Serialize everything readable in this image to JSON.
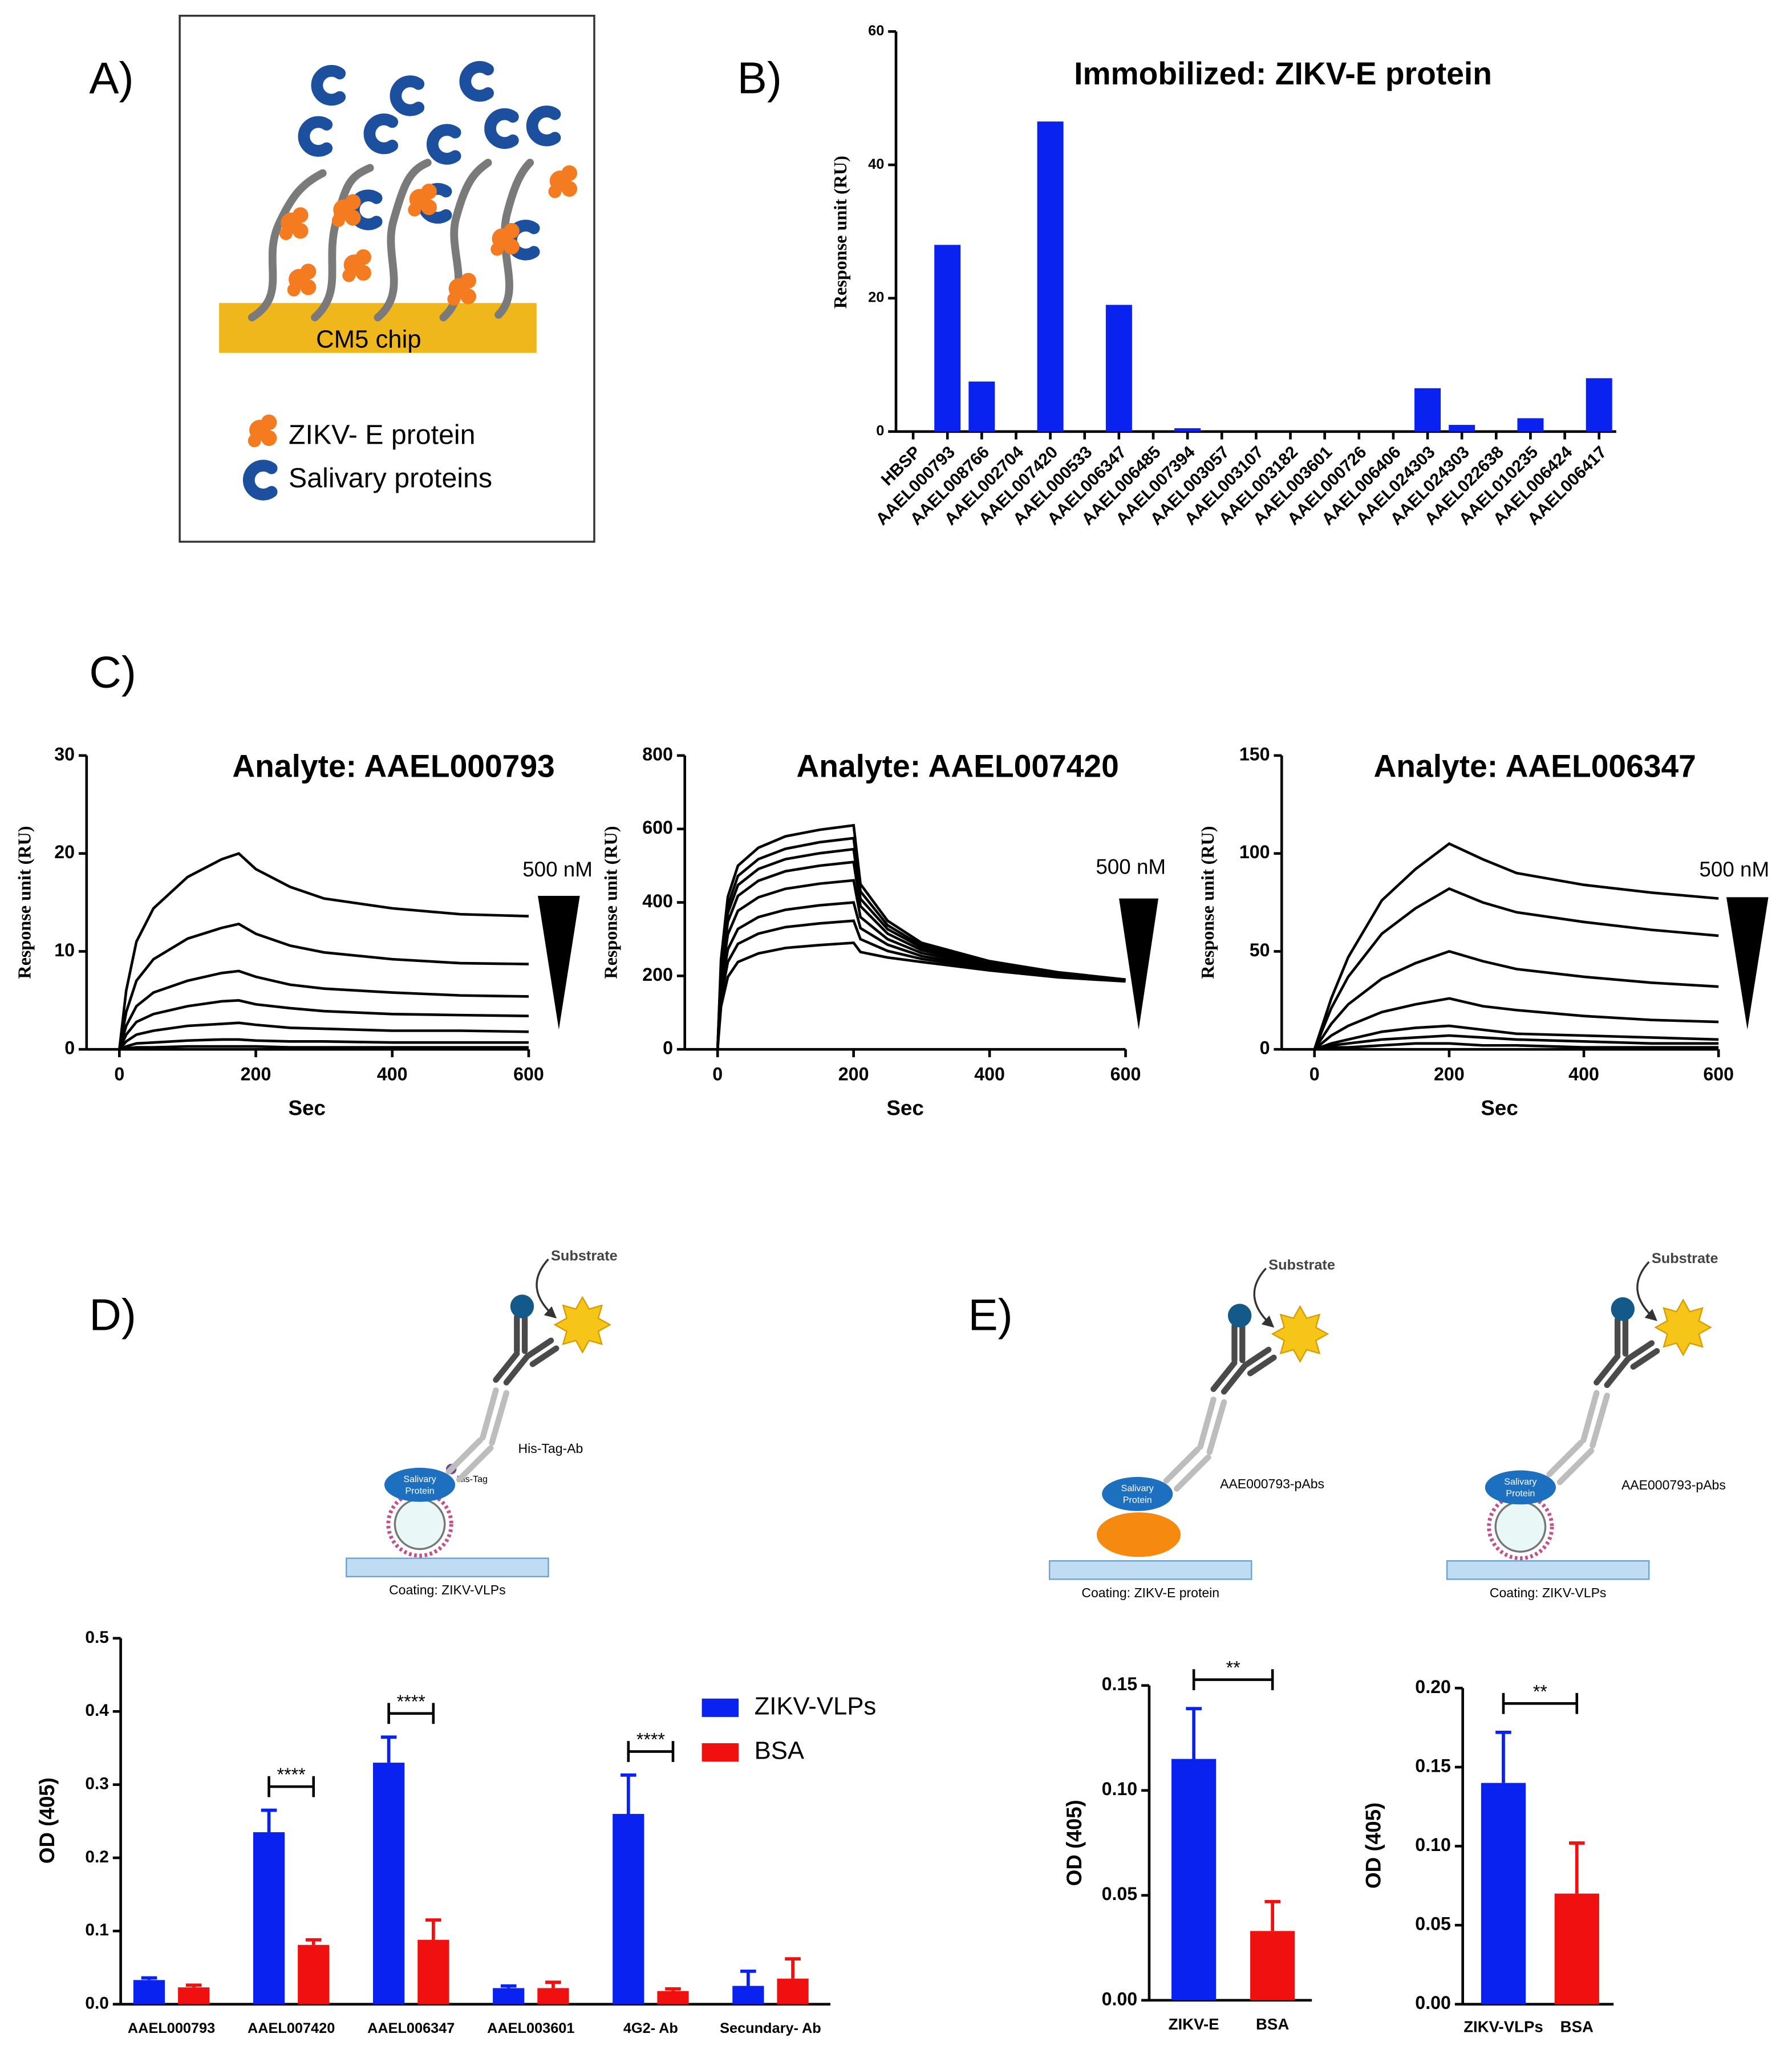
{
  "panel_labels": [
    "A)",
    "B)",
    "C)",
    "D)",
    "E)"
  ],
  "diagram_a": {
    "chip": "CM5 chip",
    "legend": [
      "ZIKV- E protein",
      "Salivary proteins"
    ]
  },
  "diagram_d": {
    "substrate": "Substrate",
    "antibody": "His-Tag-Ab",
    "protein": [
      "Salivary",
      "Protein"
    ],
    "tag": "His-Tag",
    "coating": "Coating: ZIKV-VLPs"
  },
  "diagram_e": [
    {
      "substrate": "Substrate",
      "antibody": "AAE000793-pAbs",
      "protein": [
        "Salivary",
        "Protein"
      ],
      "coating": "Coating: ZIKV-E protein"
    },
    {
      "substrate": "Substrate",
      "antibody": "AAE000793-pAbs",
      "protein": [
        "Salivary",
        "Protein"
      ],
      "coating": "Coating: ZIKV-VLPs"
    }
  ],
  "chart_data": [
    {
      "type": "bar",
      "title": "Immobilized: ZIKV-E protein",
      "y_label": "Response unit (RU)",
      "categories": [
        "HBSP",
        "AAEL000793",
        "AAEL008766",
        "AAEL002704",
        "AAEL007420",
        "AAEL000533",
        "AAEL006347",
        "AAEL006485",
        "AAEL007394",
        "AAEL003057",
        "AAEL003107",
        "AAEL003182",
        "AAEL003601",
        "AAEL000726",
        "AAEL006406",
        "AAEL024303",
        "AAEL024303",
        "AAEL022638",
        "AAEL010235",
        "AAEL006424",
        "AAEL006417"
      ],
      "values": [
        0,
        28,
        7.5,
        0,
        46.5,
        0,
        19,
        0,
        0.5,
        0,
        0,
        0,
        0,
        0,
        0,
        6.5,
        1,
        0,
        2,
        0,
        8
      ],
      "color": "#0a22f0",
      "ylim": [
        0,
        60
      ],
      "yticks": [
        0,
        20,
        40,
        60
      ]
    },
    {
      "type": "line",
      "title": "Analyte: AAEL000793",
      "y_label": "Response unit (RU)",
      "x_label": "Sec",
      "annotation": "500 nM",
      "x": [
        0,
        10,
        25,
        50,
        100,
        150,
        175,
        200,
        250,
        300,
        400,
        500,
        600
      ],
      "series": [
        {
          "color": "#000000",
          "values": [
            0,
            6,
            11,
            14.4,
            17.6,
            19.4,
            20,
            18.4,
            16.6,
            15.4,
            14.4,
            13.8,
            13.6
          ]
        },
        {
          "color": "#000000",
          "values": [
            0,
            3.8,
            7,
            9.2,
            11.3,
            12.4,
            12.8,
            11.8,
            10.6,
            9.9,
            9.2,
            8.8,
            8.7
          ]
        },
        {
          "color": "#000000",
          "values": [
            0,
            2.4,
            4.4,
            5.8,
            7,
            7.8,
            8,
            7.4,
            6.6,
            6.2,
            5.8,
            5.5,
            5.4
          ]
        },
        {
          "color": "#000000",
          "values": [
            0,
            1.5,
            2.8,
            3.6,
            4.4,
            4.9,
            5,
            4.6,
            4.2,
            3.9,
            3.6,
            3.5,
            3.4
          ]
        },
        {
          "color": "#000000",
          "values": [
            0,
            0.8,
            1.5,
            1.9,
            2.4,
            2.6,
            2.7,
            2.5,
            2.2,
            2.1,
            1.9,
            1.9,
            1.8
          ]
        },
        {
          "color": "#000000",
          "values": [
            0,
            0.3,
            0.6,
            0.7,
            0.9,
            1,
            1,
            0.9,
            0.8,
            0.8,
            0.7,
            0.7,
            0.7
          ]
        },
        {
          "color": "#000000",
          "values": [
            0,
            0.1,
            0.2,
            0.2,
            0.3,
            0.3,
            0.3,
            0.3,
            0.2,
            0.2,
            0.2,
            0.2,
            0.2
          ]
        }
      ],
      "xlim": [
        0,
        600
      ],
      "xticks": [
        0,
        200,
        400,
        600
      ],
      "ylim": [
        0,
        30
      ],
      "yticks": [
        0,
        10,
        20,
        30
      ]
    },
    {
      "type": "line",
      "title": "Analyte: AAEL007420",
      "y_label": "Response unit (RU)",
      "x_label": "Sec",
      "annotation": "500 nM",
      "x": [
        0,
        5,
        15,
        30,
        60,
        100,
        150,
        200,
        210,
        250,
        300,
        400,
        500,
        600
      ],
      "series": [
        {
          "color": "#000000",
          "values": [
            0,
            244,
            415,
            500,
            549,
            580,
            598,
            610,
            450,
            350,
            290,
            240,
            210,
            190
          ]
        },
        {
          "color": "#000000",
          "values": [
            0,
            230,
            391,
            472,
            518,
            546,
            564,
            575,
            430,
            338,
            283,
            236,
            207,
            189
          ]
        },
        {
          "color": "#000000",
          "values": [
            0,
            218,
            371,
            447,
            491,
            518,
            534,
            545,
            410,
            327,
            277,
            233,
            205,
            188
          ]
        },
        {
          "color": "#000000",
          "values": [
            0,
            204,
            347,
            418,
            459,
            485,
            500,
            510,
            390,
            315,
            270,
            230,
            203,
            187
          ]
        },
        {
          "color": "#000000",
          "values": [
            0,
            184,
            313,
            377,
            414,
            437,
            451,
            460,
            360,
            300,
            262,
            226,
            201,
            187
          ]
        },
        {
          "color": "#000000",
          "values": [
            0,
            160,
            272,
            328,
            360,
            380,
            392,
            400,
            330,
            285,
            254,
            222,
            199,
            186
          ]
        },
        {
          "color": "#000000",
          "values": [
            0,
            140,
            238,
            287,
            315,
            333,
            343,
            350,
            300,
            268,
            246,
            219,
            197,
            186
          ]
        },
        {
          "color": "#000000",
          "values": [
            0,
            116,
            197,
            238,
            261,
            276,
            284,
            290,
            265,
            250,
            238,
            215,
            196,
            185
          ]
        }
      ],
      "xlim": [
        0,
        600
      ],
      "xticks": [
        0,
        200,
        400,
        600
      ],
      "ylim": [
        0,
        800
      ],
      "yticks": [
        0,
        200,
        400,
        600,
        800
      ]
    },
    {
      "type": "line",
      "title": "Analyte: AAEL006347",
      "y_label": "Response unit (RU)",
      "x_label": "Sec",
      "annotation": "500 nM",
      "x": [
        0,
        25,
        50,
        100,
        150,
        200,
        250,
        300,
        400,
        500,
        600
      ],
      "series": [
        {
          "color": "#000000",
          "values": [
            0,
            26,
            47,
            76,
            92,
            105,
            97,
            90,
            84,
            80,
            77
          ]
        },
        {
          "color": "#000000",
          "values": [
            0,
            21,
            37,
            59,
            72,
            82,
            75,
            70,
            65,
            61,
            58
          ]
        },
        {
          "color": "#000000",
          "values": [
            0,
            13,
            23,
            36,
            44,
            50,
            45,
            41,
            37,
            34,
            32
          ]
        },
        {
          "color": "#000000",
          "values": [
            0,
            7,
            12,
            19,
            23,
            26,
            22,
            20,
            17,
            15,
            14
          ]
        },
        {
          "color": "#000000",
          "values": [
            0,
            3,
            5,
            9,
            11,
            12,
            10,
            8,
            7,
            6,
            5
          ]
        },
        {
          "color": "#000000",
          "values": [
            0,
            2,
            3,
            5,
            6,
            7,
            6,
            5,
            4,
            3,
            3
          ]
        },
        {
          "color": "#000000",
          "values": [
            0,
            1,
            1,
            2,
            3,
            3,
            2,
            2,
            1,
            1,
            1
          ]
        }
      ],
      "xlim": [
        0,
        600
      ],
      "xticks": [
        0,
        200,
        400,
        600
      ],
      "ylim": [
        0,
        150
      ],
      "yticks": [
        0,
        50,
        100,
        150
      ]
    },
    {
      "type": "bar",
      "y_label": "OD (405)",
      "legend": "upper right",
      "categories": [
        "AAEL000793",
        "AAEL007420",
        "AAEL006347",
        "AAEL003601",
        "4G2- Ab",
        "Secundary- Ab"
      ],
      "series": [
        {
          "name": "ZIKV-VLPs",
          "color": "#0a22f0",
          "values": [
            0.033,
            0.235,
            0.33,
            0.022,
            0.26,
            0.025
          ],
          "errors": [
            0.003,
            0.03,
            0.035,
            0.003,
            0.053,
            0.02
          ]
        },
        {
          "name": "BSA",
          "color": "#f01010",
          "values": [
            0.023,
            0.081,
            0.088,
            0.022,
            0.018,
            0.035
          ],
          "errors": [
            0.003,
            0.007,
            0.027,
            0.008,
            0.003,
            0.027
          ]
        }
      ],
      "annotations": [
        {
          "text": "****",
          "category": "AAEL007420"
        },
        {
          "text": "****",
          "category": "AAEL006347"
        },
        {
          "text": "****",
          "category": "4G2- Ab"
        }
      ],
      "ylim": [
        0,
        0.5
      ],
      "yticks": [
        {
          "value": 0,
          "label": "0.0"
        },
        0.1,
        0.2,
        0.3,
        0.4,
        0.5
      ]
    },
    {
      "type": "bar",
      "y_label": "OD (405)",
      "categories": [
        "ZIKV-E",
        "BSA"
      ],
      "values": [
        0.115,
        0.033
      ],
      "errors": [
        0.024,
        0.014
      ],
      "colors": [
        "#0a22f0",
        "#f01010"
      ],
      "annotations": [
        {
          "text": "**"
        }
      ],
      "ylim": [
        0,
        0.15
      ],
      "yticks": [
        {
          "value": 0,
          "label": "0.00"
        },
        {
          "value": 0.05,
          "label": "0.05"
        },
        {
          "value": 0.1,
          "label": "0.10"
        },
        {
          "value": 0.15,
          "label": "0.15"
        }
      ]
    },
    {
      "type": "bar",
      "y_label": "OD (405)",
      "categories": [
        "ZIKV-VLPs",
        "BSA"
      ],
      "values": [
        0.14,
        0.07
      ],
      "errors": [
        0.032,
        0.032
      ],
      "colors": [
        "#0a22f0",
        "#f01010"
      ],
      "annotations": [
        {
          "text": "**"
        }
      ],
      "ylim": [
        0,
        0.2
      ],
      "yticks": [
        {
          "value": 0,
          "label": "0.00"
        },
        {
          "value": 0.05,
          "label": "0.05"
        },
        {
          "value": 0.1,
          "label": "0.10"
        },
        {
          "value": 0.15,
          "label": "0.15"
        },
        {
          "value": 0.2,
          "label": "0.20"
        }
      ]
    }
  ]
}
